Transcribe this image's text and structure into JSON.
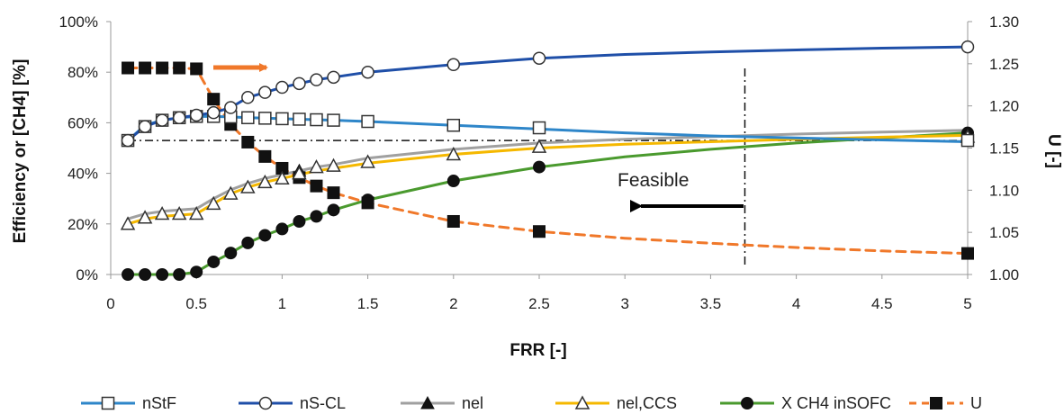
{
  "chart_data": {
    "type": "line",
    "title": "",
    "xlabel": "FRR [-]",
    "ylabel": "Efficiency or [CH4] [%]",
    "ylabel_right": "U [-]",
    "xlim": [
      0,
      5
    ],
    "ylim": [
      0,
      100
    ],
    "ylim_right": [
      1.0,
      1.3
    ],
    "x_ticks": [
      "0",
      "0.5",
      "1",
      "1.5",
      "2",
      "2.5",
      "3",
      "3.5",
      "4",
      "4.5",
      "5"
    ],
    "y_ticks": [
      "0%",
      "20%",
      "40%",
      "60%",
      "80%",
      "100%"
    ],
    "y_right_ticks": [
      "1.00",
      "1.05",
      "1.10",
      "1.15",
      "1.20",
      "1.25",
      "1.30"
    ],
    "grid": false,
    "legend_position": "bottom",
    "annotations": {
      "feasible_label": "Feasible"
    },
    "reference_lines": {
      "vertical_x": 3.7,
      "horizontal_y": 53
    },
    "series": [
      {
        "name": "nStF",
        "color": "#2e86c9",
        "marker": "square-open",
        "axis": "left",
        "line": [
          [
            0.1,
            53
          ],
          [
            0.2,
            59
          ],
          [
            0.3,
            61
          ],
          [
            0.4,
            62
          ],
          [
            0.5,
            62.5
          ],
          [
            0.6,
            62.5
          ],
          [
            0.7,
            62.3
          ],
          [
            0.8,
            62
          ],
          [
            0.9,
            61.8
          ],
          [
            1.0,
            61.6
          ],
          [
            1.1,
            61.4
          ],
          [
            1.2,
            61.2
          ],
          [
            1.3,
            61
          ],
          [
            1.5,
            60.5
          ],
          [
            2.0,
            59
          ],
          [
            2.5,
            57.5
          ],
          [
            3.0,
            56
          ],
          [
            3.5,
            54.8
          ],
          [
            4.0,
            54
          ],
          [
            4.5,
            53.2
          ],
          [
            5.0,
            52.5
          ]
        ],
        "markers": [
          [
            0.1,
            53
          ],
          [
            0.2,
            58.5
          ],
          [
            0.3,
            61
          ],
          [
            0.4,
            62
          ],
          [
            0.5,
            62.5
          ],
          [
            0.6,
            62.5
          ],
          [
            0.7,
            62.3
          ],
          [
            0.8,
            62
          ],
          [
            0.9,
            61.8
          ],
          [
            1.0,
            61.6
          ],
          [
            1.1,
            61.4
          ],
          [
            1.2,
            61.2
          ],
          [
            1.3,
            61
          ],
          [
            1.5,
            60.5
          ],
          [
            2.0,
            59
          ],
          [
            2.5,
            58
          ],
          [
            5.0,
            53
          ]
        ]
      },
      {
        "name": "nS-CL",
        "color": "#1f4fa8",
        "marker": "circle-open",
        "axis": "left",
        "line": [
          [
            0.1,
            53
          ],
          [
            0.2,
            58.5
          ],
          [
            0.3,
            61
          ],
          [
            0.4,
            62
          ],
          [
            0.5,
            63
          ],
          [
            0.6,
            64
          ],
          [
            0.7,
            66
          ],
          [
            0.8,
            70
          ],
          [
            0.9,
            72
          ],
          [
            1.0,
            74
          ],
          [
            1.1,
            75.5
          ],
          [
            1.2,
            77
          ],
          [
            1.3,
            78
          ],
          [
            1.5,
            80
          ],
          [
            2.0,
            83
          ],
          [
            2.5,
            85.5
          ],
          [
            3.0,
            87
          ],
          [
            3.5,
            88
          ],
          [
            4.0,
            88.8
          ],
          [
            4.5,
            89.5
          ],
          [
            5.0,
            90
          ]
        ],
        "markers": [
          [
            0.1,
            53
          ],
          [
            0.2,
            58.5
          ],
          [
            0.3,
            61
          ],
          [
            0.4,
            62
          ],
          [
            0.5,
            63
          ],
          [
            0.6,
            64
          ],
          [
            0.7,
            66
          ],
          [
            0.8,
            70
          ],
          [
            0.9,
            72
          ],
          [
            1.0,
            74
          ],
          [
            1.1,
            75.5
          ],
          [
            1.2,
            77
          ],
          [
            1.3,
            78
          ],
          [
            1.5,
            80
          ],
          [
            2.0,
            83
          ],
          [
            2.5,
            85.5
          ],
          [
            5.0,
            90
          ]
        ]
      },
      {
        "name": "nel",
        "color": "#a0a0a0",
        "marker": "triangle-filled",
        "axis": "left",
        "line": [
          [
            0.1,
            22
          ],
          [
            0.2,
            24
          ],
          [
            0.3,
            25
          ],
          [
            0.4,
            25.5
          ],
          [
            0.5,
            26
          ],
          [
            0.6,
            30
          ],
          [
            0.7,
            33.5
          ],
          [
            0.8,
            36
          ],
          [
            0.9,
            38
          ],
          [
            1.0,
            39.5
          ],
          [
            1.1,
            41
          ],
          [
            1.2,
            42.5
          ],
          [
            1.3,
            43.5
          ],
          [
            1.5,
            46
          ],
          [
            2.0,
            49.5
          ],
          [
            2.5,
            52
          ],
          [
            3.0,
            53.5
          ],
          [
            3.5,
            54.5
          ],
          [
            4.0,
            55.5
          ],
          [
            4.5,
            56.3
          ],
          [
            5.0,
            57
          ]
        ],
        "markers": [
          [
            1.1,
            41
          ]
        ]
      },
      {
        "name": "nel,CCS",
        "color": "#f5b800",
        "marker": "triangle-open",
        "axis": "left",
        "line": [
          [
            0.1,
            20
          ],
          [
            0.2,
            22
          ],
          [
            0.3,
            23
          ],
          [
            0.4,
            23.5
          ],
          [
            0.5,
            24
          ],
          [
            0.6,
            28
          ],
          [
            0.7,
            32
          ],
          [
            0.8,
            34.5
          ],
          [
            0.9,
            36.5
          ],
          [
            1.0,
            38
          ],
          [
            1.1,
            39.5
          ],
          [
            1.2,
            41
          ],
          [
            1.3,
            42
          ],
          [
            1.5,
            44
          ],
          [
            2.0,
            47.5
          ],
          [
            2.5,
            50
          ],
          [
            3.0,
            51.5
          ],
          [
            3.5,
            52.5
          ],
          [
            4.0,
            53.5
          ],
          [
            4.5,
            54.3
          ],
          [
            5.0,
            55
          ]
        ],
        "markers": [
          [
            0.1,
            20
          ],
          [
            0.2,
            22.5
          ],
          [
            0.3,
            24
          ],
          [
            0.4,
            24
          ],
          [
            0.5,
            24
          ],
          [
            0.6,
            28
          ],
          [
            0.7,
            32
          ],
          [
            0.8,
            34.5
          ],
          [
            0.9,
            36.5
          ],
          [
            1.0,
            38
          ],
          [
            1.1,
            40
          ],
          [
            1.2,
            42.5
          ],
          [
            1.3,
            43
          ],
          [
            1.5,
            44.5
          ],
          [
            2.0,
            47.5
          ],
          [
            2.5,
            50.5
          ],
          [
            5.0,
            54.5
          ]
        ]
      },
      {
        "name": "X  CH4  inSOFC",
        "color": "#4a9a2e",
        "marker": "circle-filled",
        "axis": "left",
        "line": [
          [
            0.1,
            0
          ],
          [
            0.2,
            0
          ],
          [
            0.3,
            0
          ],
          [
            0.4,
            0
          ],
          [
            0.5,
            1
          ],
          [
            0.6,
            5
          ],
          [
            0.7,
            8.5
          ],
          [
            0.8,
            12.5
          ],
          [
            0.9,
            15.5
          ],
          [
            1.0,
            18
          ],
          [
            1.1,
            21
          ],
          [
            1.2,
            23
          ],
          [
            1.3,
            25.5
          ],
          [
            1.5,
            29.5
          ],
          [
            2.0,
            37
          ],
          [
            2.5,
            42.5
          ],
          [
            3.0,
            46.5
          ],
          [
            3.5,
            49.5
          ],
          [
            4.0,
            52
          ],
          [
            4.5,
            54
          ],
          [
            5.0,
            56
          ]
        ],
        "markers": [
          [
            0.1,
            0
          ],
          [
            0.2,
            0
          ],
          [
            0.3,
            0
          ],
          [
            0.4,
            0
          ],
          [
            0.5,
            1
          ],
          [
            0.6,
            5
          ],
          [
            0.7,
            8.5
          ],
          [
            0.8,
            12.5
          ],
          [
            0.9,
            15.5
          ],
          [
            1.0,
            18
          ],
          [
            1.1,
            21
          ],
          [
            1.2,
            23
          ],
          [
            1.3,
            25.5
          ],
          [
            1.5,
            29.5
          ],
          [
            2.0,
            37
          ],
          [
            2.5,
            42.5
          ],
          [
            5.0,
            56
          ]
        ]
      },
      {
        "name": "U",
        "color": "#f0782a",
        "marker": "square-filled",
        "axis": "right",
        "dashed": true,
        "line": [
          [
            0.1,
            1.245
          ],
          [
            0.2,
            1.245
          ],
          [
            0.3,
            1.245
          ],
          [
            0.4,
            1.245
          ],
          [
            0.5,
            1.244
          ],
          [
            0.6,
            1.208
          ],
          [
            0.7,
            1.178
          ],
          [
            0.8,
            1.157
          ],
          [
            0.9,
            1.14
          ],
          [
            1.0,
            1.126
          ],
          [
            1.1,
            1.115
          ],
          [
            1.2,
            1.105
          ],
          [
            1.3,
            1.097
          ],
          [
            1.5,
            1.085
          ],
          [
            2.0,
            1.063
          ],
          [
            2.5,
            1.051
          ],
          [
            3.0,
            1.043
          ],
          [
            3.5,
            1.037
          ],
          [
            4.0,
            1.032
          ],
          [
            4.5,
            1.028
          ],
          [
            5.0,
            1.025
          ]
        ],
        "markers": [
          [
            0.1,
            1.245
          ],
          [
            0.2,
            1.245
          ],
          [
            0.3,
            1.245
          ],
          [
            0.4,
            1.245
          ],
          [
            0.5,
            1.244
          ],
          [
            0.6,
            1.208
          ],
          [
            0.7,
            1.178
          ],
          [
            0.8,
            1.157
          ],
          [
            0.9,
            1.14
          ],
          [
            1.0,
            1.126
          ],
          [
            1.1,
            1.115
          ],
          [
            1.2,
            1.105
          ],
          [
            1.3,
            1.097
          ],
          [
            1.5,
            1.085
          ],
          [
            2.0,
            1.063
          ],
          [
            2.5,
            1.051
          ],
          [
            5.0,
            1.025
          ]
        ]
      }
    ]
  }
}
